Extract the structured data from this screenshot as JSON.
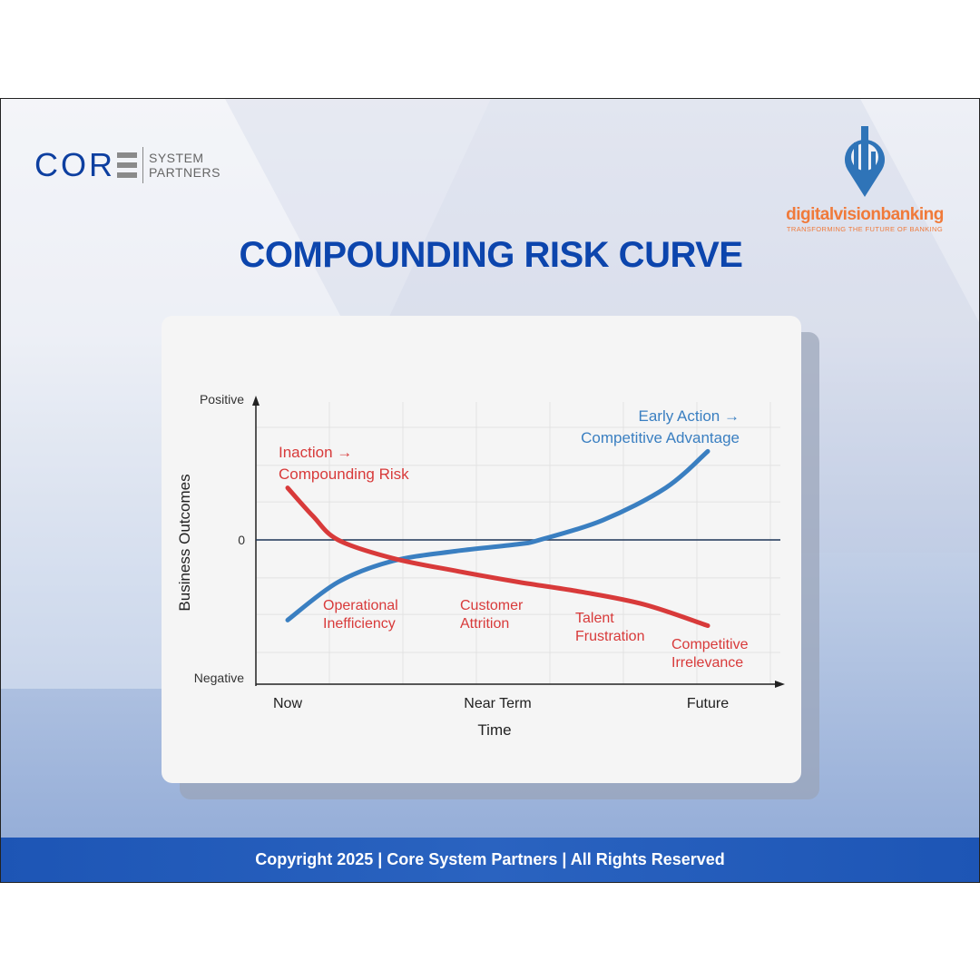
{
  "brand_left": {
    "core": "COR",
    "line1": "SYSTEM",
    "line2": "PARTNERS"
  },
  "brand_right": {
    "name": "digitalvisionbanking",
    "tagline": "TRANSFORMING THE FUTURE OF BANKING"
  },
  "title": "COMPOUNDING RISK CURVE",
  "footer": "Copyright 2025 | Core System Partners | All Rights Reserved",
  "colors": {
    "title": "#0c45ad",
    "blue_series": "#3a7fc1",
    "red_series": "#d83a3a",
    "footer": "#1d55b5"
  },
  "chart_data": {
    "type": "line",
    "xlabel": "Time",
    "ylabel": "Business Outcomes",
    "x_ticks": [
      {
        "x": 0,
        "label": "Now"
      },
      {
        "x": 5,
        "label": "Near Term"
      },
      {
        "x": 10,
        "label": "Future"
      }
    ],
    "y_ticks": [
      {
        "y": 1,
        "label": "Positive"
      },
      {
        "y": 0,
        "label": "0"
      },
      {
        "y": -1,
        "label": "Negative"
      }
    ],
    "xlim": [
      -0.7,
      11.8
    ],
    "ylim": [
      -1,
      1.0
    ],
    "grid": true,
    "series": [
      {
        "name": "Early Action → Competitive Advantage",
        "label_lines": [
          "Early Action →",
          "Competitive Advantage"
        ],
        "color": "#3a7fc1",
        "x": [
          0,
          1.2,
          2.5,
          4,
          5.5,
          6,
          7.5,
          9,
          10
        ],
        "y": [
          -0.57,
          -0.3,
          -0.15,
          -0.08,
          -0.03,
          0,
          0.14,
          0.37,
          0.63
        ]
      },
      {
        "name": "Inaction → Compounding Risk",
        "label_lines": [
          "Inaction →",
          "Compounding Risk"
        ],
        "color": "#d83a3a",
        "x": [
          0,
          0.6,
          1.2,
          2.5,
          4,
          5.5,
          7,
          8.5,
          10
        ],
        "y": [
          0.37,
          0.17,
          0,
          -0.13,
          -0.22,
          -0.3,
          -0.37,
          -0.46,
          -0.61
        ]
      }
    ],
    "annotations": [
      {
        "lines": [
          "Operational",
          "Inefficiency"
        ]
      },
      {
        "lines": [
          "Customer",
          "Attrition"
        ]
      },
      {
        "lines": [
          "Talent",
          "Frustration"
        ]
      },
      {
        "lines": [
          "Competitive",
          "Irrelevance"
        ]
      }
    ]
  }
}
